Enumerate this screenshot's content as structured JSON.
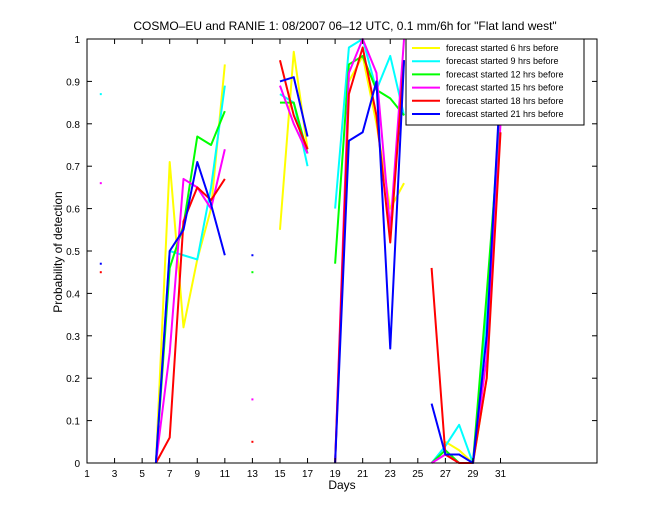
{
  "chart_data": {
    "type": "line",
    "title": "COSMO–EU and RANIE 1: 08/2007 06–12 UTC, 0.1 mm/6h for \"Flat land west\"",
    "xlabel": "Days",
    "ylabel": "Probability of detection",
    "xlim": [
      1,
      38
    ],
    "ylim": [
      0,
      1
    ],
    "xticks": [
      1,
      3,
      5,
      7,
      9,
      11,
      13,
      15,
      17,
      19,
      21,
      23,
      25,
      27,
      29,
      31
    ],
    "yticks": [
      0,
      0.1,
      0.2,
      0.3,
      0.4,
      0.5,
      0.6,
      0.7,
      0.8,
      0.9,
      1
    ],
    "grid": false,
    "legend_position": "top-right",
    "series": [
      {
        "name": "forecast started 6 hrs before",
        "color": "#ffff00",
        "x": [
          2,
          6,
          7,
          8,
          9,
          10,
          11,
          13,
          15,
          16,
          17,
          19,
          20,
          21,
          22,
          23,
          24,
          26,
          27,
          28,
          29,
          30,
          31
        ],
        "y": [
          null,
          0,
          0.71,
          0.32,
          0.48,
          0.6,
          0.94,
          null,
          0.55,
          0.97,
          0.74,
          null,
          0.9,
          0.96,
          0.8,
          0.6,
          0.66,
          null,
          0.05,
          0.03,
          0,
          0.2,
          0.86
        ]
      },
      {
        "name": "forecast started 9 hrs before",
        "color": "#00ffff",
        "x": [
          2,
          6,
          7,
          8,
          9,
          10,
          11,
          13,
          15,
          16,
          17,
          19,
          20,
          21,
          22,
          23,
          24,
          26,
          27,
          28,
          29,
          30,
          31
        ],
        "y": [
          0.87,
          0,
          0.5,
          0.49,
          0.48,
          0.65,
          0.89,
          null,
          0.87,
          0.85,
          0.7,
          0.6,
          0.98,
          1,
          0.88,
          0.96,
          0.82,
          0,
          0.04,
          0.09,
          0,
          0.35,
          0.87
        ]
      },
      {
        "name": "forecast started 12 hrs before",
        "color": "#00ff00",
        "x": [
          2,
          6,
          7,
          8,
          9,
          10,
          11,
          13,
          15,
          16,
          17,
          19,
          20,
          21,
          22,
          23,
          24,
          26,
          27,
          28,
          29,
          30,
          31
        ],
        "y": [
          null,
          0,
          0.46,
          0.56,
          0.77,
          0.75,
          0.83,
          0.45,
          0.85,
          0.85,
          0.73,
          0.47,
          0.94,
          0.96,
          0.88,
          0.86,
          0.82,
          0,
          0.03,
          0,
          0,
          0.4,
          0.82
        ]
      },
      {
        "name": "forecast started 15 hrs before",
        "color": "#ff00ff",
        "x": [
          2,
          6,
          7,
          8,
          9,
          10,
          11,
          13,
          15,
          16,
          17,
          19,
          20,
          21,
          22,
          23,
          24,
          26,
          27,
          28,
          29,
          30,
          31
        ],
        "y": [
          0.66,
          0,
          0.26,
          0.67,
          0.65,
          0.6,
          0.74,
          0.15,
          0.89,
          0.8,
          0.73,
          0,
          0.92,
          1,
          0.92,
          0.55,
          1,
          0,
          0.02,
          0,
          0,
          0.25,
          0.8
        ]
      },
      {
        "name": "forecast started 18 hrs before",
        "color": "#ff0000",
        "x": [
          2,
          6,
          7,
          8,
          9,
          10,
          11,
          13,
          15,
          16,
          17,
          19,
          20,
          21,
          22,
          23,
          24,
          26,
          27,
          28,
          29,
          30,
          31
        ],
        "y": [
          0.45,
          0,
          0.06,
          0.57,
          0.65,
          0.62,
          0.67,
          0.05,
          0.95,
          0.82,
          0.74,
          0,
          0.87,
          0.98,
          0.82,
          0.52,
          0.95,
          0.46,
          0.02,
          0,
          0,
          0.2,
          0.78
        ]
      },
      {
        "name": "forecast started 21 hrs before",
        "color": "#0000ff",
        "x": [
          2,
          6,
          7,
          8,
          9,
          10,
          11,
          13,
          15,
          16,
          17,
          19,
          20,
          21,
          22,
          23,
          24,
          26,
          27,
          28,
          29,
          30,
          31
        ],
        "y": [
          0.47,
          0,
          0.5,
          0.55,
          0.71,
          0.61,
          0.49,
          0.49,
          0.9,
          0.91,
          0.77,
          0,
          0.76,
          0.78,
          0.9,
          0.27,
          0.95,
          0.14,
          0.02,
          0.02,
          0,
          0.3,
          0.9
        ]
      }
    ]
  }
}
